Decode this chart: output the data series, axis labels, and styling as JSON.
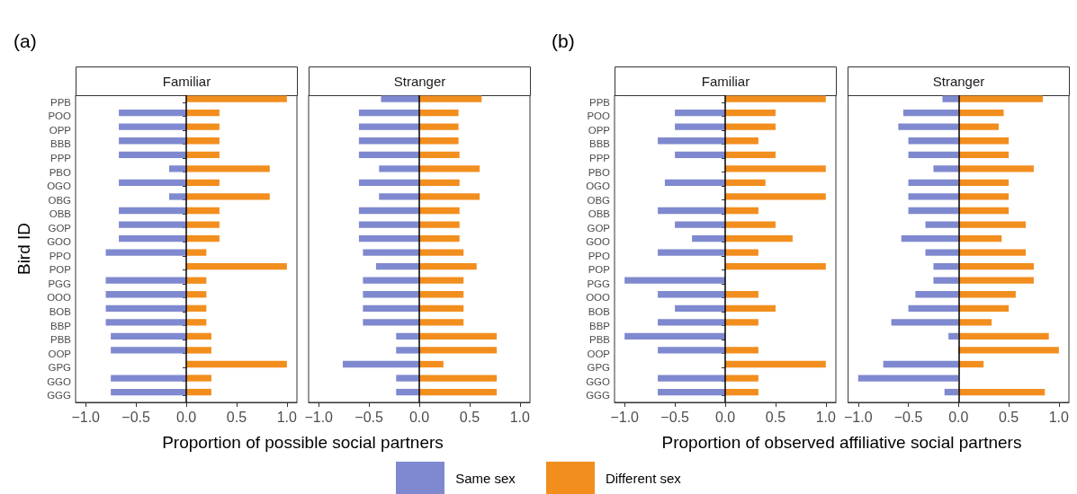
{
  "chart_data": [
    {
      "type": "bar",
      "orientation": "horizontal",
      "stacked": true,
      "title": "(a)",
      "subtitle": "Familiar",
      "xlabel": "Proportion of possible social partners",
      "ylabel": "Bird ID",
      "legend": "bottom",
      "categories": [
        "PPB",
        "POO",
        "OPP",
        "BBB",
        "PPP",
        "PBO",
        "OGO",
        "OBG",
        "OBB",
        "GOP",
        "GOO",
        "PPO",
        "POP",
        "PGG",
        "OOO",
        "BOB",
        "BBP",
        "PBB",
        "OOP",
        "GPG",
        "GGO",
        "GGG"
      ],
      "series": [
        {
          "name": "Same sex",
          "color": "#7f89cf",
          "values": [
            0,
            -0.67,
            -0.67,
            -0.67,
            -0.67,
            -0.17,
            -0.67,
            -0.17,
            -0.67,
            -0.67,
            -0.67,
            -0.8,
            0,
            -0.8,
            -0.8,
            -0.8,
            -0.8,
            -0.75,
            -0.75,
            0,
            -0.75,
            -0.75
          ]
        },
        {
          "name": "Different sex",
          "color": "#f28e1e",
          "values": [
            1,
            0.33,
            0.33,
            0.33,
            0.33,
            0.83,
            0.33,
            0.83,
            0.33,
            0.33,
            0.33,
            0.2,
            1,
            0.2,
            0.2,
            0.2,
            0.2,
            0.25,
            0.25,
            1,
            0.25,
            0.25
          ]
        }
      ],
      "xlim": [
        -1.1,
        1.1
      ],
      "xticks": [
        {
          "value": -1,
          "label": "−1.0"
        },
        {
          "value": -0.5,
          "label": "−0.5"
        },
        {
          "value": 0,
          "label": "0.0"
        },
        {
          "value": 0.5,
          "label": "0.5"
        },
        {
          "value": 1,
          "label": "1.0"
        }
      ],
      "ref_lines": [
        {
          "axis": "x",
          "value": 0,
          "color": "#000000"
        }
      ]
    },
    {
      "type": "bar",
      "orientation": "horizontal",
      "stacked": true,
      "subtitle": "Stranger",
      "tick_labels": "x",
      "categories": [
        "PPB",
        "POO",
        "OPP",
        "BBB",
        "PPP",
        "PBO",
        "OGO",
        "OBG",
        "OBB",
        "GOP",
        "GOO",
        "PPO",
        "POP",
        "PGG",
        "OOO",
        "BOB",
        "BBP",
        "PBB",
        "OOP",
        "GPG",
        "GGO",
        "GGG"
      ],
      "series": [
        {
          "name": "Same sex",
          "color": "#7f89cf",
          "values": [
            -0.38,
            -0.6,
            -0.6,
            -0.6,
            -0.6,
            -0.4,
            -0.6,
            -0.4,
            -0.6,
            -0.6,
            -0.6,
            -0.56,
            -0.43,
            -0.56,
            -0.56,
            -0.56,
            -0.56,
            -0.23,
            -0.23,
            -0.76,
            -0.23,
            -0.23
          ]
        },
        {
          "name": "Different sex",
          "color": "#f28e1e",
          "values": [
            0.62,
            0.39,
            0.39,
            0.39,
            0.4,
            0.6,
            0.4,
            0.6,
            0.4,
            0.4,
            0.4,
            0.44,
            0.57,
            0.44,
            0.44,
            0.44,
            0.44,
            0.77,
            0.77,
            0.24,
            0.77,
            0.77
          ]
        }
      ],
      "xlim": [
        -1.1,
        1.1
      ],
      "xticks": [
        {
          "value": -1,
          "label": "−1.0"
        },
        {
          "value": -0.5,
          "label": "−0.5"
        },
        {
          "value": 0,
          "label": "0.0"
        },
        {
          "value": 0.5,
          "label": "0.5"
        },
        {
          "value": 1,
          "label": "1.0"
        }
      ],
      "ref_lines": [
        {
          "axis": "x",
          "value": 0,
          "color": "#000000"
        }
      ]
    },
    {
      "type": "bar",
      "orientation": "horizontal",
      "stacked": true,
      "title": "(b)",
      "subtitle": "Familiar",
      "xlabel": "Proportion of observed affiliative social partners",
      "categories": [
        "PPB",
        "POO",
        "OPP",
        "BBB",
        "PPP",
        "PBO",
        "OGO",
        "OBG",
        "OBB",
        "GOP",
        "GOO",
        "PPO",
        "POP",
        "PGG",
        "OOO",
        "BOB",
        "BBP",
        "PBB",
        "OOP",
        "GPG",
        "GGO",
        "GGG"
      ],
      "series": [
        {
          "name": "Same sex",
          "color": "#7f89cf",
          "values": [
            0,
            -0.5,
            -0.5,
            -0.67,
            -0.5,
            0,
            -0.6,
            0,
            -0.67,
            -0.5,
            -0.33,
            -0.67,
            0,
            -1,
            -0.67,
            -0.5,
            -0.67,
            -1,
            -0.67,
            0,
            -0.67,
            -0.67
          ]
        },
        {
          "name": "Different sex",
          "color": "#f28e1e",
          "values": [
            1,
            0.5,
            0.5,
            0.33,
            0.5,
            1,
            0.4,
            1,
            0.33,
            0.5,
            0.67,
            0.33,
            1,
            0,
            0.33,
            0.5,
            0.33,
            0,
            0.33,
            1,
            0.33,
            0.33
          ]
        }
      ],
      "xlim": [
        -1.1,
        1.1
      ],
      "xticks": [
        {
          "value": -1,
          "label": "−1.0"
        },
        {
          "value": -0.5,
          "label": "−0.5"
        },
        {
          "value": 0,
          "label": "0.0"
        },
        {
          "value": 0.5,
          "label": "0.5"
        },
        {
          "value": 1,
          "label": "1.0"
        }
      ],
      "ref_lines": [
        {
          "axis": "x",
          "value": 0,
          "color": "#000000"
        }
      ]
    },
    {
      "type": "bar",
      "orientation": "horizontal",
      "stacked": true,
      "subtitle": "Stranger",
      "tick_labels": "x",
      "categories": [
        "PPB",
        "POO",
        "OPP",
        "BBB",
        "PPP",
        "PBO",
        "OGO",
        "OBG",
        "OBB",
        "GOP",
        "GOO",
        "PPO",
        "POP",
        "PGG",
        "OOO",
        "BOB",
        "BBP",
        "PBB",
        "OOP",
        "GPG",
        "GGO",
        "GGG"
      ],
      "series": [
        {
          "name": "Same sex",
          "color": "#7f89cf",
          "values": [
            -0.16,
            -0.55,
            -0.6,
            -0.5,
            -0.5,
            -0.25,
            -0.5,
            -0.5,
            -0.5,
            -0.33,
            -0.57,
            -0.33,
            -0.25,
            -0.25,
            -0.43,
            -0.5,
            -0.67,
            -0.1,
            0,
            -0.75,
            -1,
            -0.14
          ]
        },
        {
          "name": "Different sex",
          "color": "#f28e1e",
          "values": [
            0.84,
            0.45,
            0.4,
            0.5,
            0.5,
            0.75,
            0.5,
            0.5,
            0.5,
            0.67,
            0.43,
            0.67,
            0.75,
            0.75,
            0.57,
            0.5,
            0.33,
            0.9,
            1,
            0.25,
            0,
            0.86
          ]
        }
      ],
      "xlim": [
        -1.1,
        1.1
      ],
      "xticks": [
        {
          "value": -1,
          "label": "−1.0"
        },
        {
          "value": -0.5,
          "label": "−0.5"
        },
        {
          "value": 0,
          "label": "0.0"
        },
        {
          "value": 0.5,
          "label": "0.5"
        },
        {
          "value": 1,
          "label": "1.0"
        }
      ],
      "ref_lines": [
        {
          "axis": "x",
          "value": 0,
          "color": "#000000"
        }
      ]
    }
  ]
}
